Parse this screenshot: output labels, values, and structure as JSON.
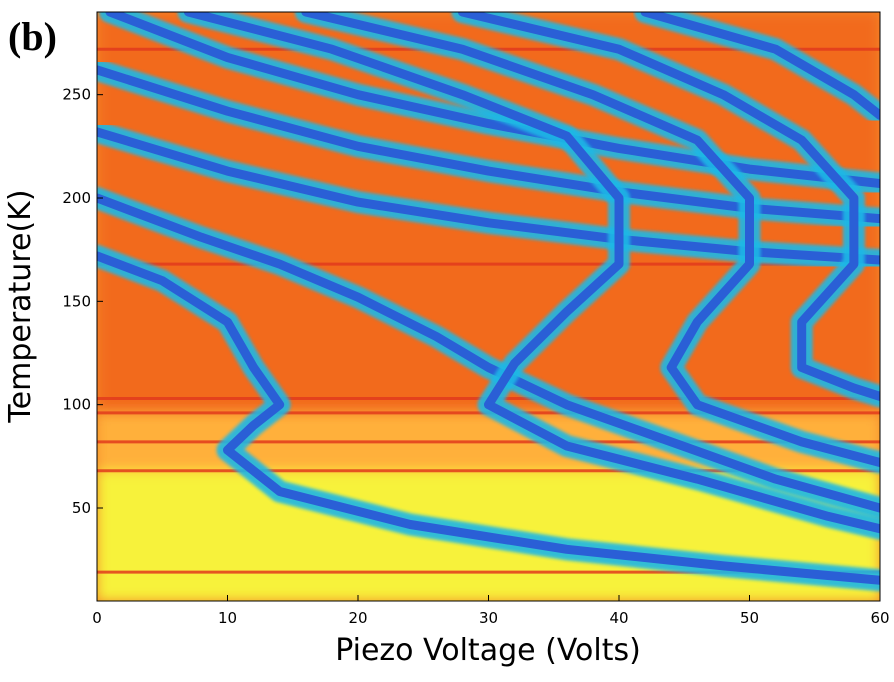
{
  "panel_label": "(b)",
  "chart_data": {
    "type": "heatmap",
    "title": "",
    "xlabel": "Piezo Voltage (Volts)",
    "ylabel": "Temperature(K)",
    "xlim": [
      0,
      60
    ],
    "ylim": [
      5,
      290
    ],
    "x_ticks": [
      0,
      10,
      20,
      30,
      40,
      50,
      60
    ],
    "x_tick_labels": [
      "0",
      "10",
      "20",
      "30",
      "40",
      "50",
      "60"
    ],
    "y_ticks": [
      50,
      100,
      150,
      200,
      250
    ],
    "y_tick_labels": [
      "50",
      "100",
      "150",
      "200",
      "250"
    ],
    "grid": false,
    "colormap": [
      "#2a5fd6",
      "#1fb8e6",
      "#b9f04a",
      "#f7f23a",
      "#ffb03a",
      "#f26a1f",
      "#e23b1c"
    ],
    "scan_breaks_temperature": [
      19,
      68,
      82,
      96,
      103,
      168,
      272
    ],
    "interference_fringes": [
      {
        "name": "",
        "points": [
          [
            1,
            290
          ],
          [
            10,
            268
          ],
          [
            20,
            250
          ],
          [
            30,
            236
          ],
          [
            40,
            224
          ],
          [
            50,
            214
          ],
          [
            60,
            207
          ]
        ]
      },
      {
        "name": "",
        "points": [
          [
            0,
            262
          ],
          [
            10,
            242
          ],
          [
            20,
            225
          ],
          [
            30,
            213
          ],
          [
            40,
            203
          ],
          [
            50,
            195
          ],
          [
            60,
            190
          ]
        ]
      },
      {
        "name": "",
        "points": [
          [
            0,
            232
          ],
          [
            10,
            213
          ],
          [
            20,
            198
          ],
          [
            30,
            188
          ],
          [
            40,
            180
          ],
          [
            50,
            174
          ],
          [
            60,
            170
          ]
        ]
      },
      {
        "name": "",
        "points": [
          [
            0,
            200
          ],
          [
            8,
            181
          ],
          [
            14,
            168
          ],
          [
            20,
            152
          ],
          [
            26,
            133
          ],
          [
            30,
            118
          ],
          [
            36,
            100
          ],
          [
            44,
            82
          ],
          [
            52,
            64
          ],
          [
            60,
            50
          ]
        ]
      },
      {
        "name": "",
        "points": [
          [
            0,
            172
          ],
          [
            5,
            160
          ],
          [
            10,
            140
          ],
          [
            12,
            118
          ],
          [
            14,
            100
          ],
          [
            12,
            90
          ],
          [
            10,
            78
          ],
          [
            14,
            58
          ],
          [
            24,
            42
          ],
          [
            36,
            30
          ],
          [
            48,
            22
          ],
          [
            60,
            15
          ]
        ]
      },
      {
        "name": "",
        "points": [
          [
            7,
            290
          ],
          [
            18,
            272
          ],
          [
            28,
            250
          ],
          [
            36,
            230
          ],
          [
            40,
            200
          ],
          [
            40,
            168
          ],
          [
            36,
            145
          ],
          [
            32,
            120
          ],
          [
            30,
            100
          ],
          [
            36,
            80
          ],
          [
            46,
            64
          ],
          [
            56,
            46
          ],
          [
            60,
            40
          ]
        ]
      },
      {
        "name": "",
        "points": [
          [
            16,
            290
          ],
          [
            28,
            272
          ],
          [
            38,
            250
          ],
          [
            46,
            228
          ],
          [
            50,
            200
          ],
          [
            50,
            168
          ],
          [
            46,
            140
          ],
          [
            44,
            118
          ],
          [
            46,
            100
          ],
          [
            54,
            82
          ],
          [
            60,
            72
          ]
        ]
      },
      {
        "name": "",
        "points": [
          [
            28,
            290
          ],
          [
            40,
            272
          ],
          [
            48,
            250
          ],
          [
            54,
            228
          ],
          [
            58,
            200
          ],
          [
            58,
            168
          ],
          [
            54,
            140
          ],
          [
            54,
            118
          ],
          [
            58,
            108
          ],
          [
            60,
            104
          ]
        ]
      },
      {
        "name": "",
        "points": [
          [
            42,
            290
          ],
          [
            52,
            272
          ],
          [
            58,
            250
          ],
          [
            60,
            240
          ]
        ]
      }
    ]
  }
}
